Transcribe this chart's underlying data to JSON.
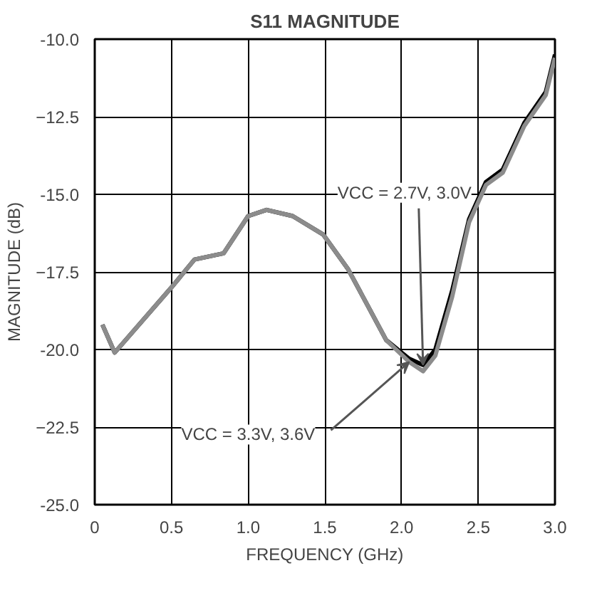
{
  "chart_data": {
    "type": "line",
    "title": "S11 MAGNITUDE",
    "xlabel": "FREQUENCY (GHz)",
    "ylabel": "MAGNITUDE (dB)",
    "x": [
      0.05,
      0.13,
      0.5,
      0.65,
      0.84,
      1.0,
      1.12,
      1.29,
      1.49,
      1.65,
      1.77,
      1.9,
      2.05,
      2.14,
      2.22,
      2.33,
      2.44,
      2.55,
      2.66,
      2.8,
      2.94,
      3.0
    ],
    "series": [
      {
        "color": "#000000",
        "values": [
          -19.2,
          -20.1,
          -18.0,
          -17.1,
          -16.9,
          -15.7,
          -15.5,
          -15.7,
          -16.3,
          -17.4,
          -18.5,
          -19.7,
          -20.3,
          -20.5,
          -20.0,
          -18.1,
          -15.8,
          -14.6,
          -14.2,
          -12.7,
          -11.7,
          -10.5
        ]
      },
      {
        "color": "#8c8c8c",
        "values": [
          -19.2,
          -20.1,
          -18.0,
          -17.1,
          -16.9,
          -15.7,
          -15.5,
          -15.7,
          -16.3,
          -17.4,
          -18.5,
          -19.7,
          -20.4,
          -20.7,
          -20.2,
          -18.3,
          -15.9,
          -14.7,
          -14.3,
          -12.8,
          -11.8,
          -10.6
        ]
      }
    ],
    "annotations": [
      {
        "text": "VCC = 2.7V, 3.0V",
        "x": 2.14,
        "y": -20.5
      },
      {
        "text": "VCC = 3.3V, 3.6V",
        "x": 2.05,
        "y": -20.4
      }
    ],
    "xlim": [
      0,
      3.0
    ],
    "ylim": [
      -25.0,
      -10.0
    ],
    "xticks": [
      {
        "value": 0,
        "label": "0"
      },
      0.5,
      {
        "value": 1,
        "label": "1.0"
      },
      1.5,
      {
        "value": 2,
        "label": "2.0"
      },
      2.5,
      {
        "value": 3,
        "label": "3.0"
      }
    ],
    "yticks": [
      {
        "value": -25,
        "label": "-25.0"
      },
      -22.5,
      {
        "value": -20,
        "label": "-20.0"
      },
      -17.5,
      {
        "value": -15,
        "label": "-15.0"
      },
      -12.5,
      {
        "value": -10,
        "label": "-10.0"
      }
    ],
    "grid": true,
    "line_style": "solid",
    "marker": "none"
  }
}
